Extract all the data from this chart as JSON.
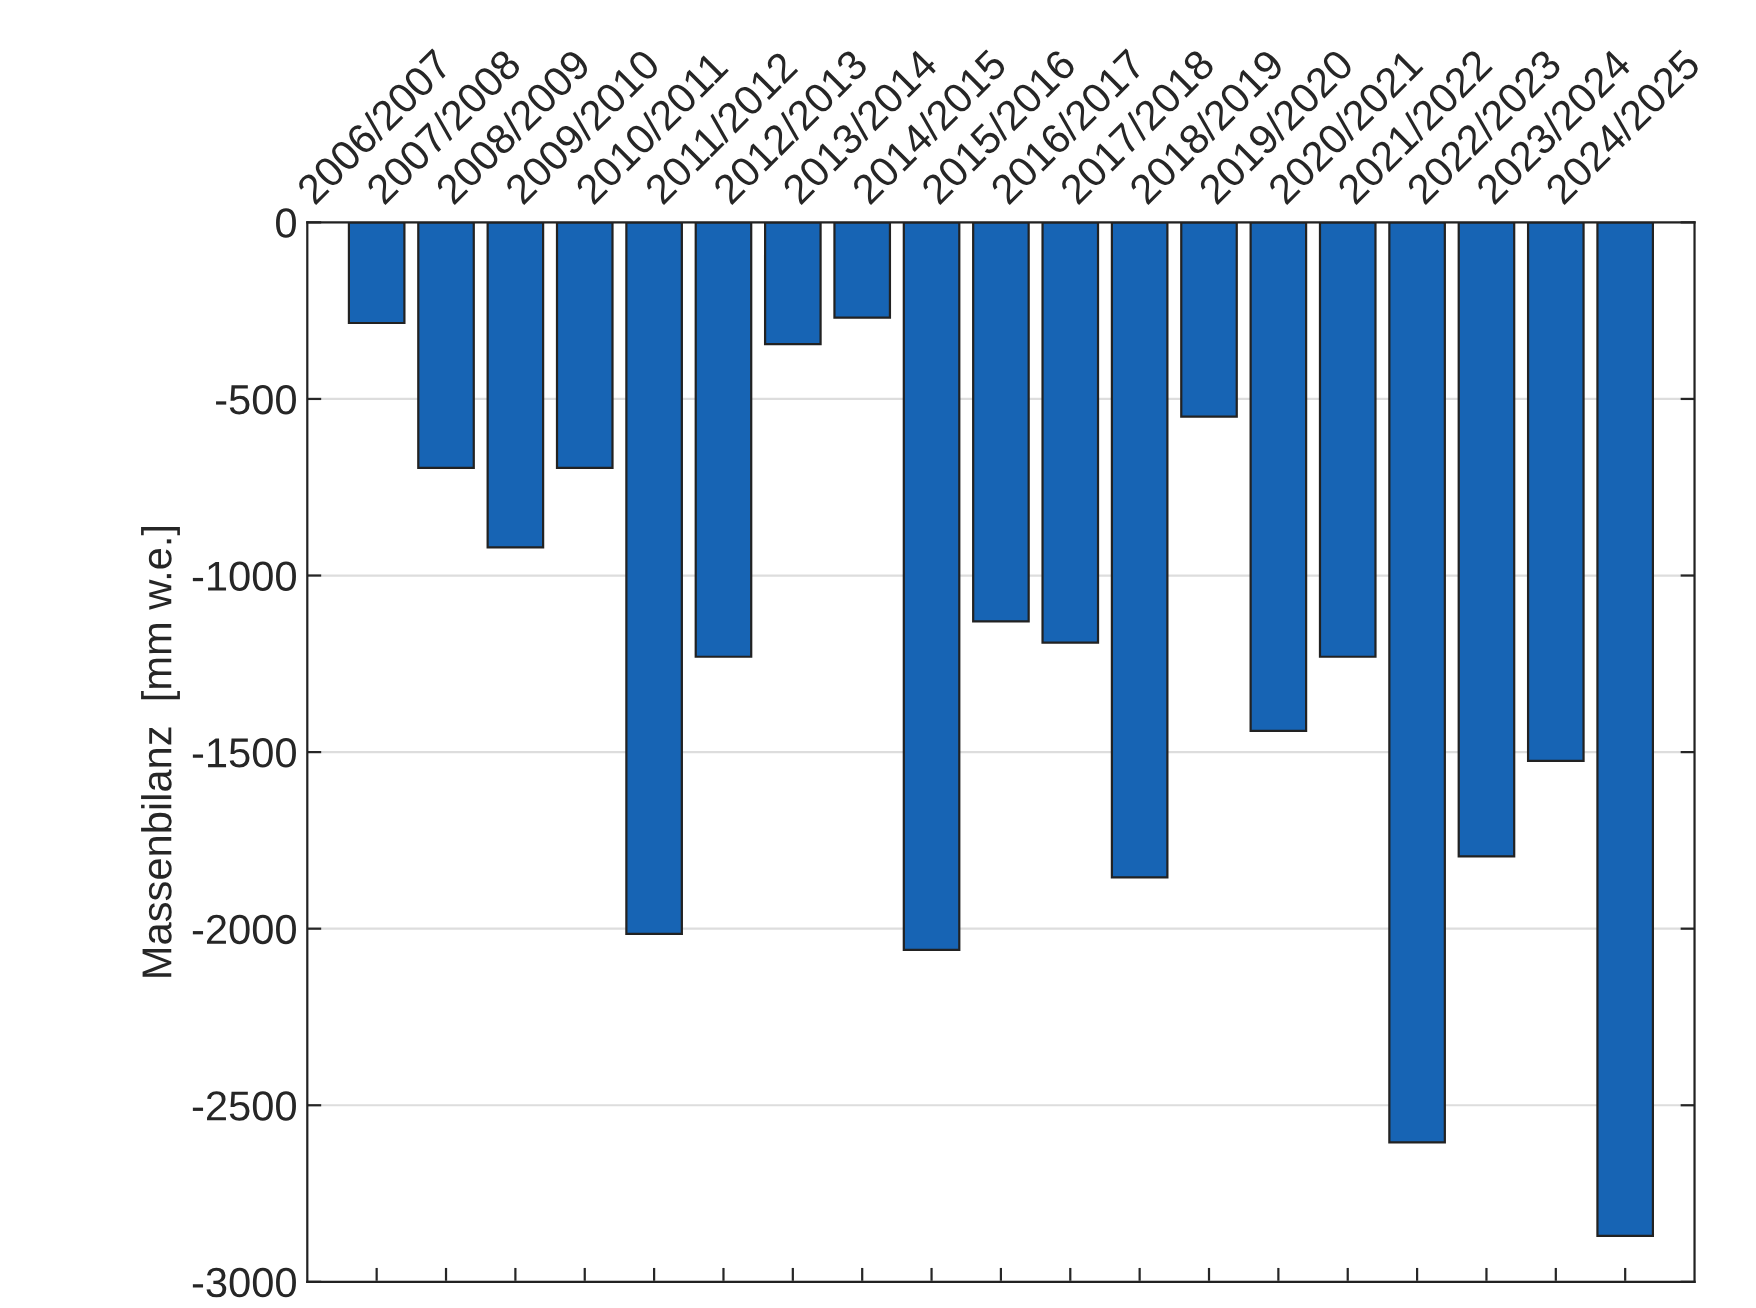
{
  "chart_data": {
    "type": "bar",
    "ylabel": "Massenbilanz  [mm w.e.]",
    "categories": [
      "2006/2007",
      "2007/2008",
      "2008/2009",
      "2009/2010",
      "2010/2011",
      "2011/2012",
      "2012/2013",
      "2013/2014",
      "2014/2015",
      "2015/2016",
      "2016/2017",
      "2017/2018",
      "2018/2019",
      "2019/2020",
      "2020/2021",
      "2021/2022",
      "2022/2023",
      "2023/2024",
      "2024/2025"
    ],
    "values": [
      -285,
      -695,
      -920,
      -695,
      -2015,
      -1230,
      -345,
      -270,
      -2060,
      -1130,
      -1190,
      -1855,
      -550,
      -1440,
      -1230,
      -2605,
      -1795,
      -1525,
      -2870
    ],
    "color": "#1764b4",
    "ylim": [
      -3000,
      0
    ],
    "yticks": [
      -3000,
      -2500,
      -2000,
      -1500,
      -1000,
      -500,
      0
    ],
    "grid": "y"
  }
}
